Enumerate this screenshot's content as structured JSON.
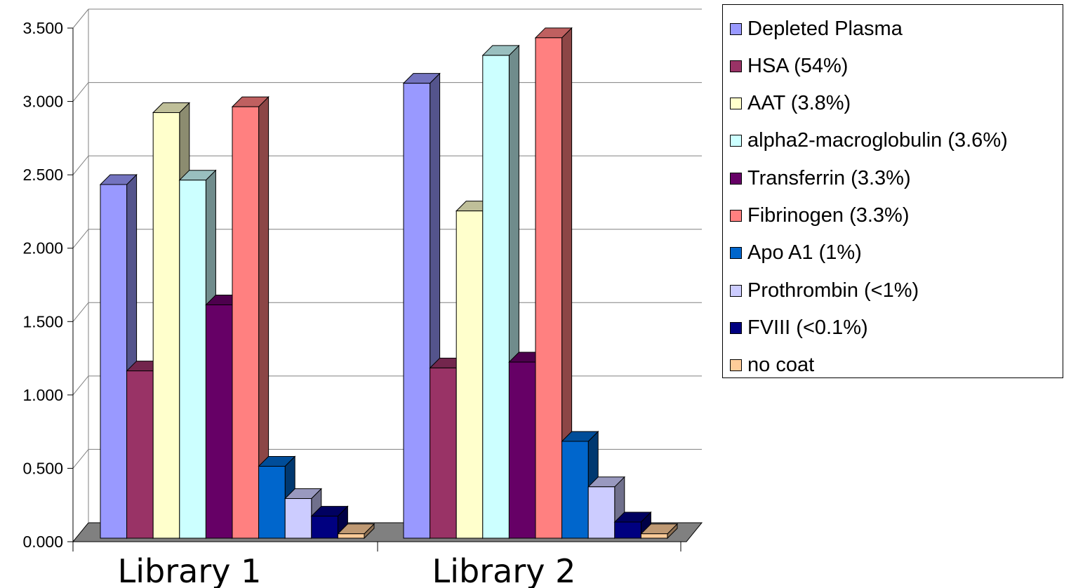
{
  "chart_data": {
    "type": "bar",
    "title": "",
    "xlabel": "",
    "ylabel": "",
    "ylim": [
      0,
      3.5
    ],
    "ytick_labels": [
      "0.000",
      "0.500",
      "1.000",
      "1.500",
      "2.000",
      "2.500",
      "3.000",
      "3.500"
    ],
    "categories": [
      "Library 1",
      "Library 2"
    ],
    "grid": true,
    "legend_position": "right",
    "series": [
      {
        "name": "Depleted Plasma",
        "color": "#9999ff",
        "values": [
          2.41,
          3.1
        ]
      },
      {
        "name": "HSA (54%)",
        "color": "#993366",
        "values": [
          1.14,
          1.16
        ]
      },
      {
        "name": "AAT (3.8%)",
        "color": "#ffffcc",
        "values": [
          2.9,
          2.23
        ]
      },
      {
        "name": "alpha2-macroglobulin (3.6%)",
        "color": "#ccffff",
        "values": [
          2.44,
          3.29
        ]
      },
      {
        "name": "Transferrin (3.3%)",
        "color": "#660066",
        "values": [
          1.59,
          1.2
        ]
      },
      {
        "name": "Fibrinogen (3.3%)",
        "color": "#ff8080",
        "values": [
          2.94,
          3.41
        ]
      },
      {
        "name": "Apo A1 (1%)",
        "color": "#0066cc",
        "values": [
          0.49,
          0.66
        ]
      },
      {
        "name": "Prothrombin (<1%)",
        "color": "#ccccff",
        "values": [
          0.27,
          0.35
        ]
      },
      {
        "name": "FVIII (<0.1%)",
        "color": "#000080",
        "values": [
          0.15,
          0.11
        ]
      },
      {
        "name": "no coat",
        "color": "#ffcc99",
        "values": [
          0.03,
          0.03
        ]
      }
    ]
  }
}
